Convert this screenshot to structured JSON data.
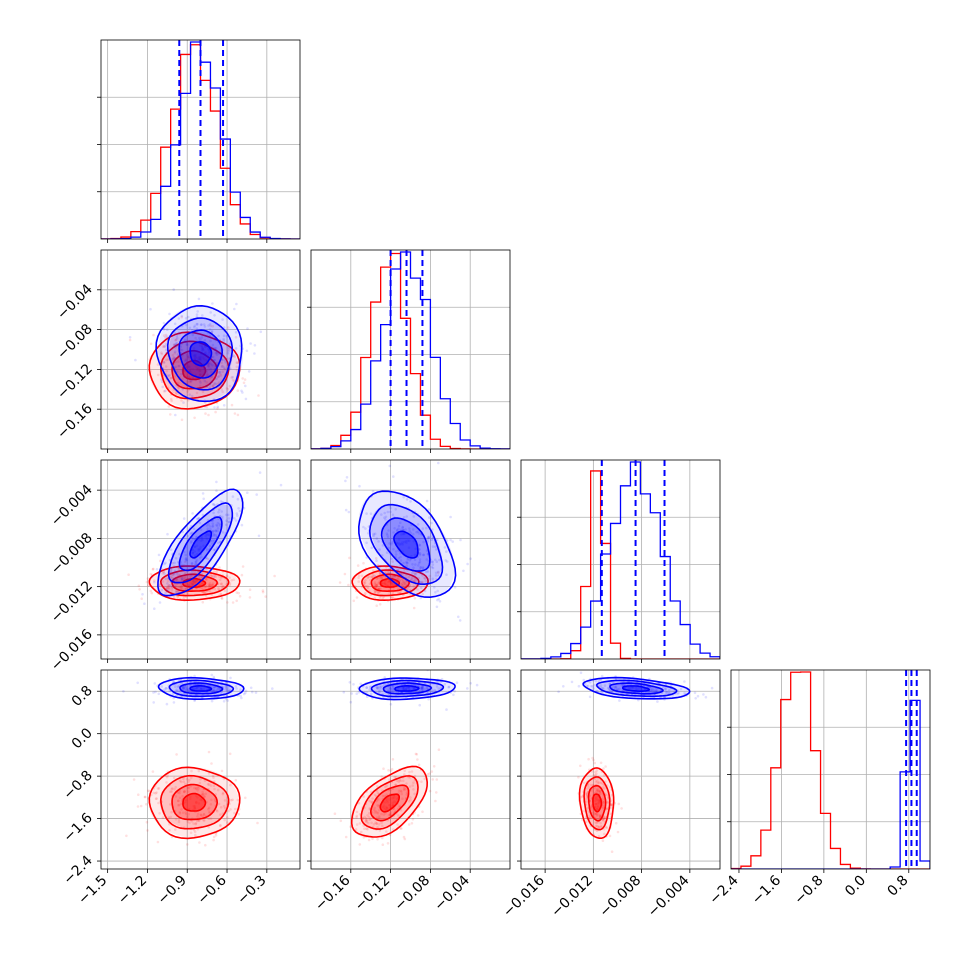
{
  "chart_data": {
    "type": "corner",
    "grid": true,
    "series_colors": {
      "blue": "#0000ff",
      "red": "#ff0000"
    },
    "parameters": [
      {
        "range": [
          -1.55,
          -0.05
        ],
        "ticks": [
          -1.5,
          -1.2,
          -0.9,
          -0.6,
          -0.3
        ],
        "tick_labels": [
          "−1.5",
          "−1.2",
          "−0.9",
          "−0.6",
          "−0.3"
        ],
        "blue": {
          "mean": -0.8,
          "sd": 0.16,
          "quantiles": [
            -0.96,
            -0.8,
            -0.63
          ]
        },
        "red": {
          "mean": -0.85,
          "sd": 0.17
        }
      },
      {
        "range": [
          -0.2,
          0.0
        ],
        "ticks": [
          -0.16,
          -0.12,
          -0.08,
          -0.04
        ],
        "tick_labels": [
          "−0.16",
          "−0.12",
          "−0.08",
          "−0.04"
        ],
        "blue": {
          "mean": -0.104,
          "sd": 0.024,
          "quantiles": [
            -0.12,
            -0.104,
            -0.088
          ]
        },
        "red": {
          "mean": -0.121,
          "sd": 0.019
        }
      },
      {
        "range": [
          -0.018,
          -0.0015
        ],
        "ticks": [
          -0.016,
          -0.012,
          -0.008,
          -0.004
        ],
        "tick_labels": [
          "−0.016",
          "−0.012",
          "−0.008",
          "−0.004"
        ],
        "blue": {
          "mean": -0.0085,
          "sd": 0.0022,
          "quantiles": [
            -0.0113,
            -0.0085,
            -0.0061
          ]
        },
        "red": {
          "mean": -0.0117,
          "sd": 0.0007
        }
      },
      {
        "range": [
          -2.55,
          1.2
        ],
        "ticks": [
          -2.4,
          -1.6,
          -0.8,
          0.0,
          0.8
        ],
        "tick_labels": [
          "−2.4",
          "−1.6",
          "−0.8",
          "0.0",
          "0.8"
        ],
        "blue": {
          "mean": 0.85,
          "sd": 0.1,
          "quantiles": [
            0.75,
            0.85,
            0.95
          ]
        },
        "red": {
          "mean": -1.3,
          "sd": 0.33
        }
      }
    ],
    "correlations": {
      "blue": {
        "1-0": -0.05,
        "2-0": 0.75,
        "2-1": -0.45,
        "3-0": -0.1,
        "3-1": 0.1,
        "3-2": -0.35
      },
      "red": {
        "1-0": 0.0,
        "2-0": 0.0,
        "2-1": 0.0,
        "3-0": 0.0,
        "3-1": 0.55,
        "3-2": -0.1
      }
    }
  }
}
